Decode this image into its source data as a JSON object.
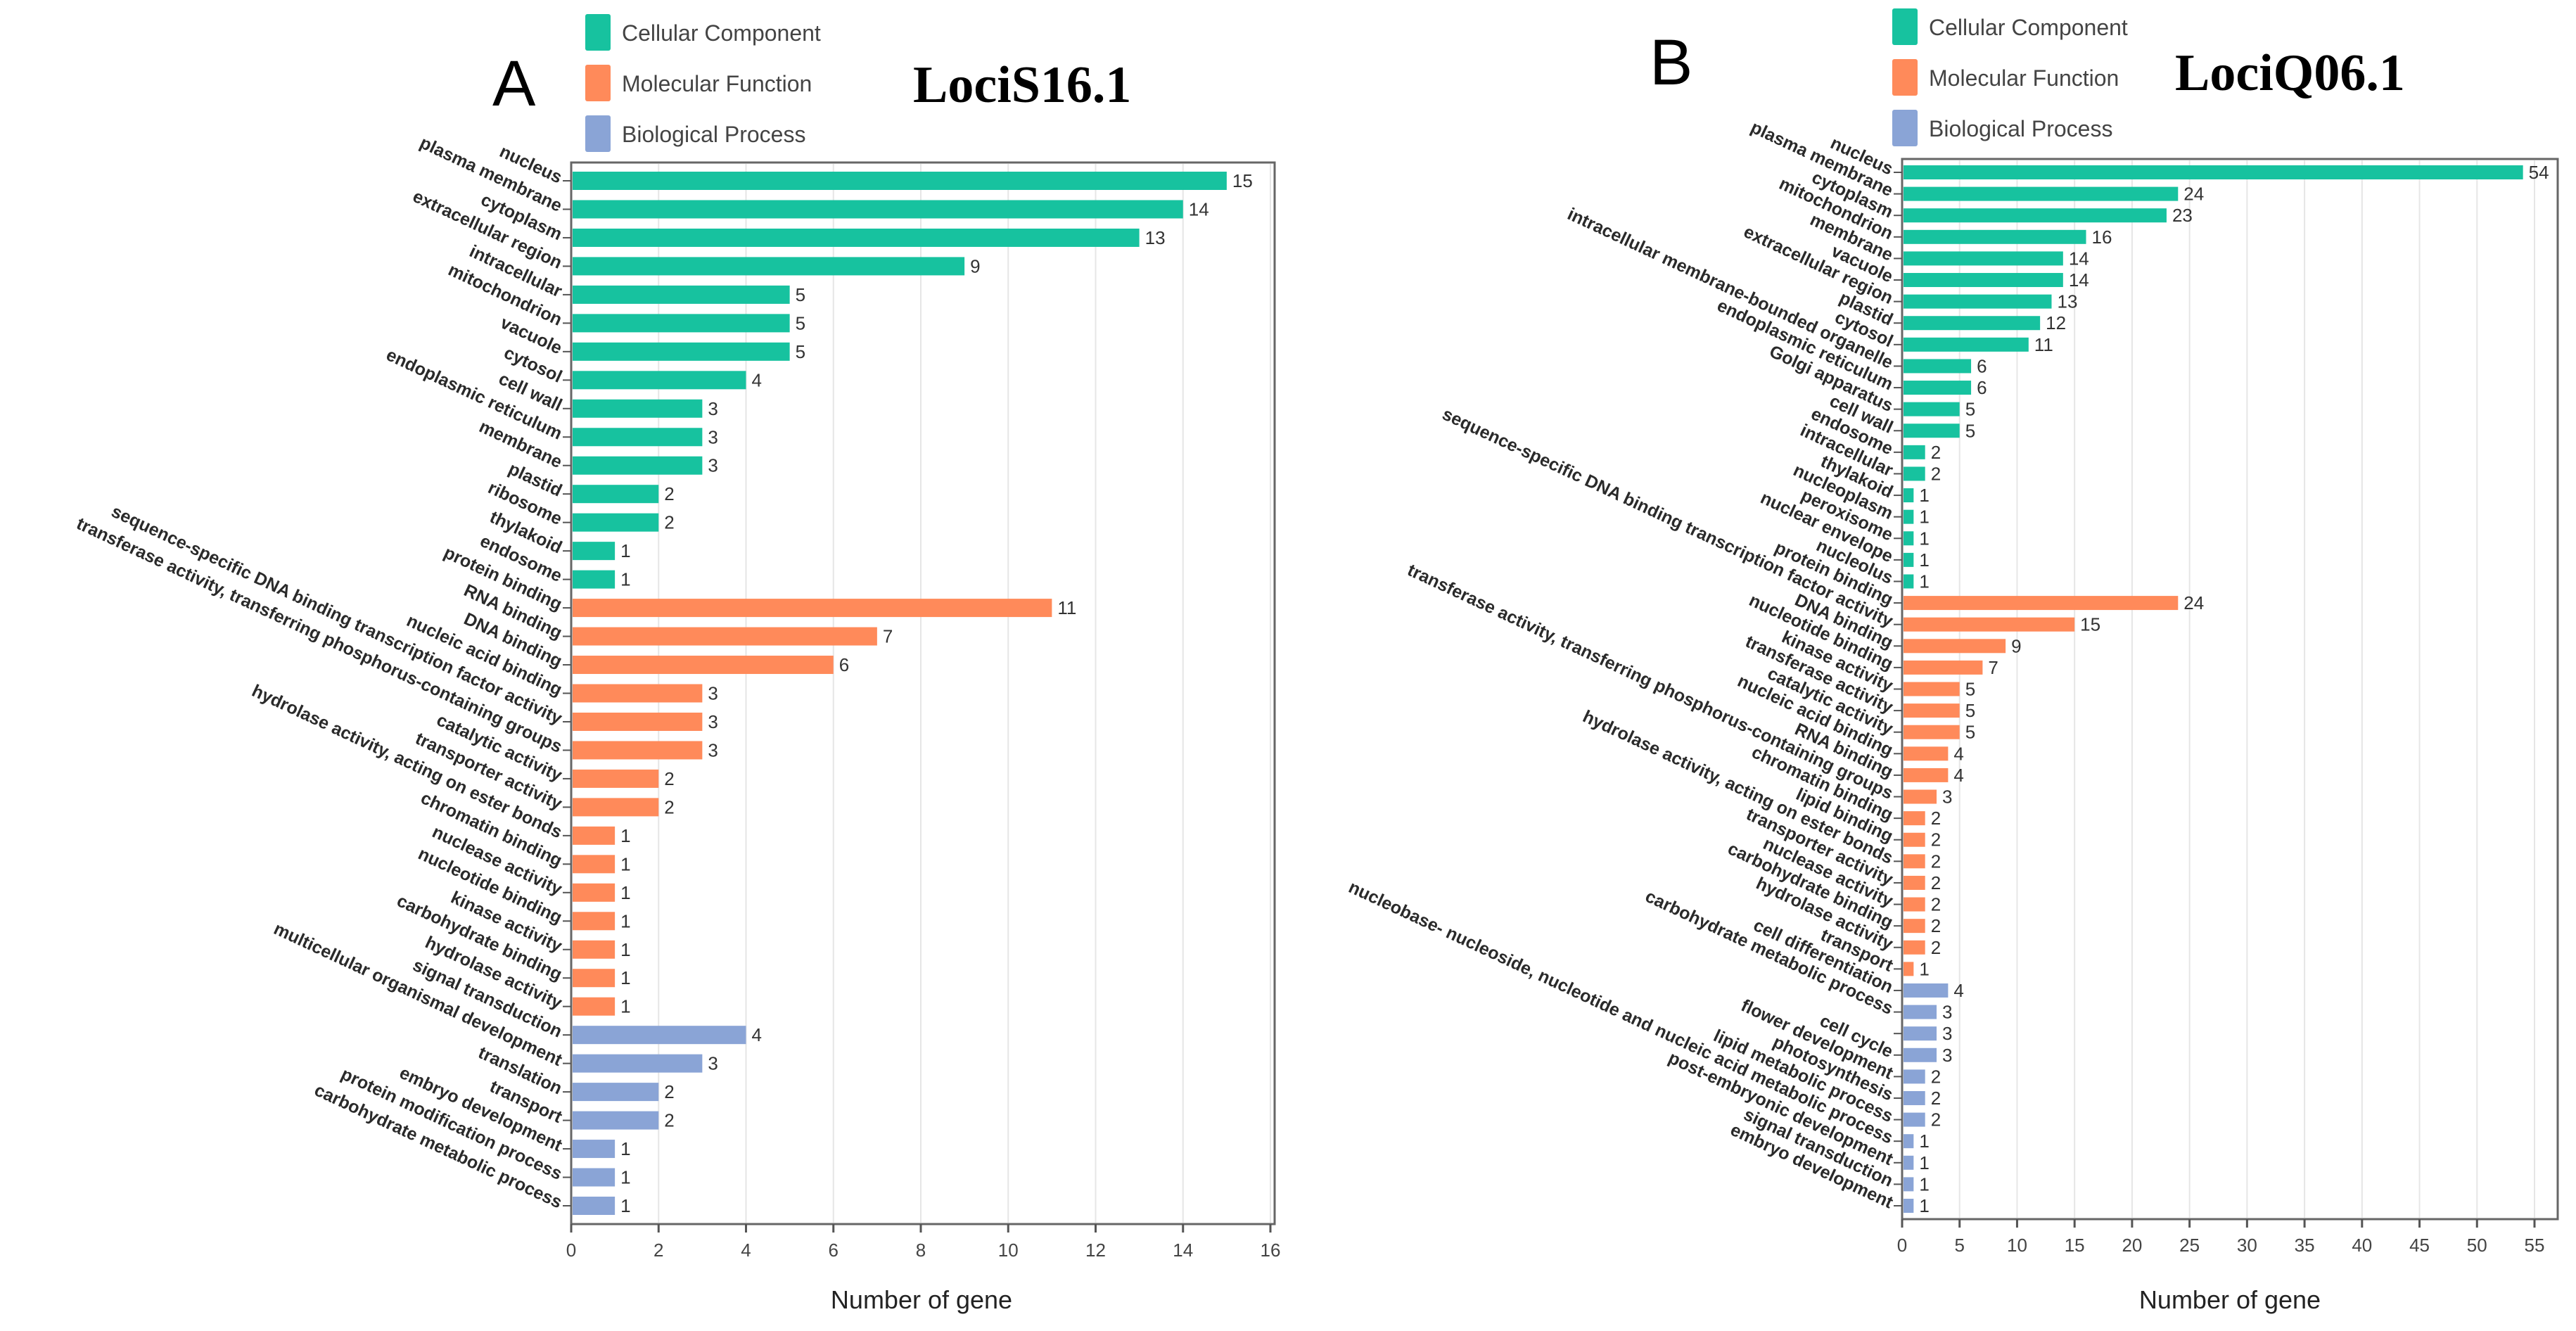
{
  "colors": {
    "Cellular Component": "#17c29f",
    "Molecular Function": "#ff8a5a",
    "Biological Process": "#8aa4d6"
  },
  "chart_data": [
    {
      "type": "bar",
      "orientation": "horizontal",
      "panel": "A",
      "title": "LociS16.1",
      "xlabel": "Number of gene",
      "xlim": [
        0,
        16.5
      ],
      "xticks": [
        0,
        2,
        4,
        6,
        8,
        10,
        12,
        14,
        16
      ],
      "grid": true,
      "legend": [
        "Cellular Component",
        "Molecular Function",
        "Biological Process"
      ],
      "legend_position": "top-left",
      "bars": [
        {
          "label": "nucleus",
          "value": 15,
          "group": "Cellular Component"
        },
        {
          "label": "plasma membrane",
          "value": 14,
          "group": "Cellular Component"
        },
        {
          "label": "cytoplasm",
          "value": 13,
          "group": "Cellular Component"
        },
        {
          "label": "extracellular region",
          "value": 9,
          "group": "Cellular Component"
        },
        {
          "label": "intracellular",
          "value": 5,
          "group": "Cellular Component"
        },
        {
          "label": "mitochondrion",
          "value": 5,
          "group": "Cellular Component"
        },
        {
          "label": "vacuole",
          "value": 5,
          "group": "Cellular Component"
        },
        {
          "label": "cytosol",
          "value": 4,
          "group": "Cellular Component"
        },
        {
          "label": "cell wall",
          "value": 3,
          "group": "Cellular Component"
        },
        {
          "label": "endoplasmic reticulum",
          "value": 3,
          "group": "Cellular Component"
        },
        {
          "label": "membrane",
          "value": 3,
          "group": "Cellular Component"
        },
        {
          "label": "plastid",
          "value": 2,
          "group": "Cellular Component"
        },
        {
          "label": "ribosome",
          "value": 2,
          "group": "Cellular Component"
        },
        {
          "label": "thylakoid",
          "value": 1,
          "group": "Cellular Component"
        },
        {
          "label": "endosome",
          "value": 1,
          "group": "Cellular Component"
        },
        {
          "label": "protein binding",
          "value": 11,
          "group": "Molecular Function"
        },
        {
          "label": "RNA binding",
          "value": 7,
          "group": "Molecular Function"
        },
        {
          "label": "DNA binding",
          "value": 6,
          "group": "Molecular Function"
        },
        {
          "label": "nucleic acid binding",
          "value": 3,
          "group": "Molecular Function"
        },
        {
          "label": "sequence-specific DNA binding transcription factor activity",
          "value": 3,
          "group": "Molecular Function"
        },
        {
          "label": "transferase activity, transferring phosphorus-containing groups",
          "value": 3,
          "group": "Molecular Function"
        },
        {
          "label": "catalytic activity",
          "value": 2,
          "group": "Molecular Function"
        },
        {
          "label": "transporter activity",
          "value": 2,
          "group": "Molecular Function"
        },
        {
          "label": "hydrolase activity, acting on ester bonds",
          "value": 1,
          "group": "Molecular Function"
        },
        {
          "label": "chromatin binding",
          "value": 1,
          "group": "Molecular Function"
        },
        {
          "label": "nuclease activity",
          "value": 1,
          "group": "Molecular Function"
        },
        {
          "label": "nucleotide binding",
          "value": 1,
          "group": "Molecular Function"
        },
        {
          "label": "kinase activity",
          "value": 1,
          "group": "Molecular Function"
        },
        {
          "label": "carbohydrate binding",
          "value": 1,
          "group": "Molecular Function"
        },
        {
          "label": "hydrolase activity",
          "value": 1,
          "group": "Molecular Function"
        },
        {
          "label": "signal transduction",
          "value": 4,
          "group": "Biological Process"
        },
        {
          "label": "multicellular organismal development",
          "value": 3,
          "group": "Biological Process"
        },
        {
          "label": "translation",
          "value": 2,
          "group": "Biological Process"
        },
        {
          "label": "transport",
          "value": 2,
          "group": "Biological Process"
        },
        {
          "label": "embryo development",
          "value": 1,
          "group": "Biological Process"
        },
        {
          "label": "protein modification process",
          "value": 1,
          "group": "Biological Process"
        },
        {
          "label": "carbohydrate metabolic process",
          "value": 1,
          "group": "Biological Process"
        }
      ]
    },
    {
      "type": "bar",
      "orientation": "horizontal",
      "panel": "B",
      "title": "LociQ06.1",
      "xlabel": "Number of gene",
      "xlim": [
        0,
        57
      ],
      "xticks": [
        0,
        5,
        10,
        15,
        20,
        25,
        30,
        35,
        40,
        45,
        50,
        55
      ],
      "grid": true,
      "legend": [
        "Cellular Component",
        "Molecular Function",
        "Biological Process"
      ],
      "legend_position": "top-left",
      "bars": [
        {
          "label": "nucleus",
          "value": 54,
          "group": "Cellular Component"
        },
        {
          "label": "plasma membrane",
          "value": 24,
          "group": "Cellular Component"
        },
        {
          "label": "cytoplasm",
          "value": 23,
          "group": "Cellular Component"
        },
        {
          "label": "mitochondrion",
          "value": 16,
          "group": "Cellular Component"
        },
        {
          "label": "membrane",
          "value": 14,
          "group": "Cellular Component"
        },
        {
          "label": "vacuole",
          "value": 14,
          "group": "Cellular Component"
        },
        {
          "label": "extracellular region",
          "value": 13,
          "group": "Cellular Component"
        },
        {
          "label": "plastid",
          "value": 12,
          "group": "Cellular Component"
        },
        {
          "label": "cytosol",
          "value": 11,
          "group": "Cellular Component"
        },
        {
          "label": "intracellular membrane-bounded organelle",
          "value": 6,
          "group": "Cellular Component"
        },
        {
          "label": "endoplasmic reticulum",
          "value": 6,
          "group": "Cellular Component"
        },
        {
          "label": "Golgi apparatus",
          "value": 5,
          "group": "Cellular Component"
        },
        {
          "label": "cell wall",
          "value": 5,
          "group": "Cellular Component"
        },
        {
          "label": "endosome",
          "value": 2,
          "group": "Cellular Component"
        },
        {
          "label": "intracellular",
          "value": 2,
          "group": "Cellular Component"
        },
        {
          "label": "thylakoid",
          "value": 1,
          "group": "Cellular Component"
        },
        {
          "label": "nucleoplasm",
          "value": 1,
          "group": "Cellular Component"
        },
        {
          "label": "peroxisome",
          "value": 1,
          "group": "Cellular Component"
        },
        {
          "label": "nuclear envelope",
          "value": 1,
          "group": "Cellular Component"
        },
        {
          "label": "nucleolus",
          "value": 1,
          "group": "Cellular Component"
        },
        {
          "label": "protein binding",
          "value": 24,
          "group": "Molecular Function"
        },
        {
          "label": "sequence-specific DNA binding transcription factor activity",
          "value": 15,
          "group": "Molecular Function"
        },
        {
          "label": "DNA binding",
          "value": 9,
          "group": "Molecular Function"
        },
        {
          "label": "nucleotide binding",
          "value": 7,
          "group": "Molecular Function"
        },
        {
          "label": "kinase activity",
          "value": 5,
          "group": "Molecular Function"
        },
        {
          "label": "transferase activity",
          "value": 5,
          "group": "Molecular Function"
        },
        {
          "label": "catalytic activity",
          "value": 5,
          "group": "Molecular Function"
        },
        {
          "label": "nucleic acid binding",
          "value": 4,
          "group": "Molecular Function"
        },
        {
          "label": "RNA binding",
          "value": 4,
          "group": "Molecular Function"
        },
        {
          "label": "transferase activity, transferring phosphorus-containing groups",
          "value": 3,
          "group": "Molecular Function"
        },
        {
          "label": "chromatin binding",
          "value": 2,
          "group": "Molecular Function"
        },
        {
          "label": "lipid binding",
          "value": 2,
          "group": "Molecular Function"
        },
        {
          "label": "hydrolase activity, acting on ester bonds",
          "value": 2,
          "group": "Molecular Function"
        },
        {
          "label": "transporter activity",
          "value": 2,
          "group": "Molecular Function"
        },
        {
          "label": "nuclease activity",
          "value": 2,
          "group": "Molecular Function"
        },
        {
          "label": "carbohydrate binding",
          "value": 2,
          "group": "Molecular Function"
        },
        {
          "label": "hydrolase activity",
          "value": 2,
          "group": "Molecular Function"
        },
        {
          "label": "transport",
          "value": 1,
          "group": "Molecular Function"
        },
        {
          "label": "cell differentiation",
          "value": 4,
          "group": "Biological Process"
        },
        {
          "label": "carbohydrate metabolic process",
          "value": 3,
          "group": "Biological Process"
        },
        {
          "label": "",
          "value": 3,
          "group": "Biological Process"
        },
        {
          "label": "cell cycle",
          "value": 3,
          "group": "Biological Process"
        },
        {
          "label": "flower development",
          "value": 2,
          "group": "Biological Process"
        },
        {
          "label": "photosynthesis",
          "value": 2,
          "group": "Biological Process"
        },
        {
          "label": "lipid metabolic process",
          "value": 2,
          "group": "Biological Process"
        },
        {
          "label": "nucleobase- nucleoside, nucleotide and nucleic acid metabolic process",
          "value": 1,
          "group": "Biological Process"
        },
        {
          "label": "post-embryonic development",
          "value": 1,
          "group": "Biological Process"
        },
        {
          "label": "signal transduction",
          "value": 1,
          "group": "Biological Process"
        },
        {
          "label": "embryo development",
          "value": 1,
          "group": "Biological Process"
        }
      ]
    }
  ]
}
